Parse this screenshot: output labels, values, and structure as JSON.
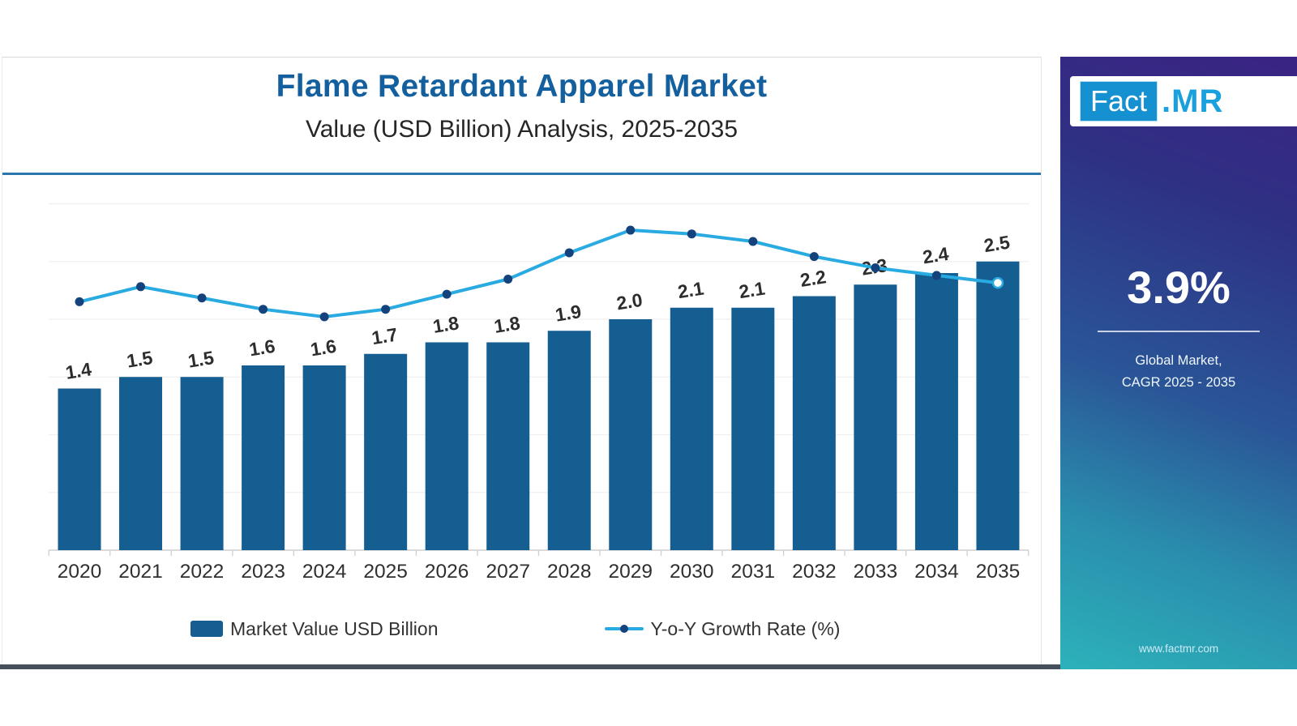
{
  "chart_data": {
    "type": "combo",
    "title": "Flame Retardant Apparel Market",
    "subtitle": "Value (USD Billion) Analysis, 2025-2035",
    "categories": [
      "2020",
      "2021",
      "2022",
      "2023",
      "2024",
      "2025",
      "2026",
      "2027",
      "2028",
      "2029",
      "2030",
      "2031",
      "2032",
      "2033",
      "2034",
      "2035"
    ],
    "series": [
      {
        "name": "Market Value USD Billion",
        "type": "bar",
        "values": [
          1.4,
          1.5,
          1.5,
          1.6,
          1.6,
          1.7,
          1.8,
          1.8,
          1.9,
          2.0,
          2.1,
          2.1,
          2.2,
          2.3,
          2.4,
          2.5
        ],
        "labels": [
          "1.4",
          "1.5",
          "1.5",
          "1.6",
          "1.6",
          "1.7",
          "1.8",
          "1.8",
          "1.9",
          "2.0",
          "2.1",
          "2.1",
          "2.2",
          "2.3",
          "2.4",
          "2.5"
        ],
        "color": "#145e92"
      },
      {
        "name": "Y-o-Y Growth Rate (%)",
        "type": "line",
        "estimated": true,
        "values": [
          4.2,
          4.6,
          4.3,
          4.0,
          3.8,
          4.0,
          4.4,
          4.8,
          5.5,
          6.1,
          6.0,
          5.8,
          5.4,
          5.1,
          4.9,
          4.7
        ],
        "color": "#29abe2",
        "marker_color": "#14427c",
        "last_marker": "open"
      }
    ],
    "ylim": [
      0,
      3.0
    ],
    "grid": true,
    "gridline_step": 0.5,
    "legend_position": "bottom"
  },
  "sidebar": {
    "logo_fact": "Fact",
    "logo_mr": ".MR",
    "cagr_value": "3.9%",
    "caption_line1": "Global Market,",
    "caption_line2": "CAGR 2025 - 2035",
    "website": "www.factmr.com",
    "colors": {
      "gradient_top": "#3b2383",
      "gradient_bottom": "#2cb2ba",
      "logo_box": "#1590d0",
      "logo_mr_text": "#1aa0dc"
    }
  },
  "page": {
    "accent_divider_color": "#2a76ad",
    "title_color": "#14609f",
    "bottom_border_color": "#46505c"
  }
}
